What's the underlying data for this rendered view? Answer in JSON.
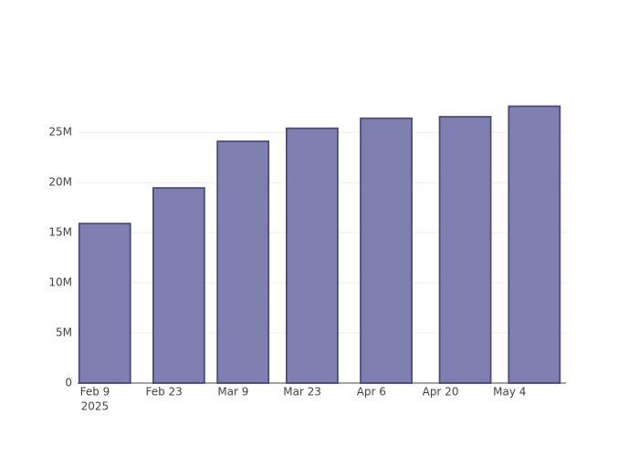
{
  "chart_data": {
    "type": "bar",
    "x": [
      "2025-02-11",
      "2025-02-26",
      "2025-03-11",
      "2025-03-25",
      "2025-04-09",
      "2025-04-25",
      "2025-05-09"
    ],
    "values": [
      15900000,
      19450000,
      24100000,
      25400000,
      26400000,
      26550000,
      27600000
    ],
    "color": "#7f7fb0",
    "edge_color": "#4a4a87",
    "xlim": [
      "2025-02-05T12:00:00Z",
      "2025-05-15T10:00:00Z"
    ],
    "xticks": [
      {
        "value": "2025-02-09",
        "label": "Feb 9"
      },
      {
        "value": "2025-02-23",
        "label": "Feb 23"
      },
      {
        "value": "2025-03-09",
        "label": "Mar 9"
      },
      {
        "value": "2025-03-23",
        "label": "Mar 23"
      },
      {
        "value": "2025-04-06",
        "label": "Apr 6"
      },
      {
        "value": "2025-04-20",
        "label": "Apr 20"
      },
      {
        "value": "2025-05-04",
        "label": "May 4"
      }
    ],
    "x_year_label": "2025",
    "ylim": [
      0,
      29100000
    ],
    "yticks": [
      0,
      {
        "value": 5000000,
        "label": "5M"
      },
      {
        "value": 10000000,
        "label": "10M"
      },
      {
        "value": 15000000,
        "label": "15M"
      },
      {
        "value": 20000000,
        "label": "20M"
      },
      {
        "value": 25000000,
        "label": "25M"
      }
    ],
    "grid": true
  }
}
